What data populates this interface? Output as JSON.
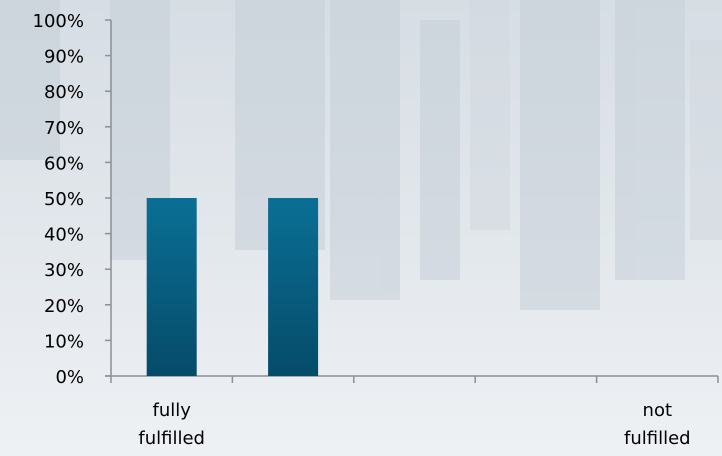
{
  "chart_data": {
    "type": "bar",
    "categories": [
      "fully fulfilled",
      "",
      "",
      "",
      "not fulfilled"
    ],
    "values": [
      50,
      50,
      0,
      0,
      0
    ],
    "ylim": [
      0,
      100
    ],
    "ytick_step": 10,
    "ytick_format": "percent",
    "grid": false,
    "legend": "none",
    "title": "",
    "xlabel": "",
    "ylabel": ""
  },
  "colors": {
    "bar_top": "#0a6f95",
    "bar_bottom": "#064b69",
    "axis": "#8a9096",
    "background": "#e4e9ee"
  }
}
